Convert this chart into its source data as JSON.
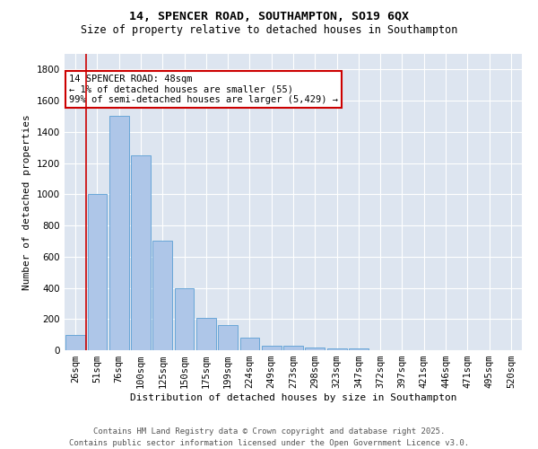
{
  "title1": "14, SPENCER ROAD, SOUTHAMPTON, SO19 6QX",
  "title2": "Size of property relative to detached houses in Southampton",
  "xlabel": "Distribution of detached houses by size in Southampton",
  "ylabel": "Number of detached properties",
  "categories": [
    "26sqm",
    "51sqm",
    "76sqm",
    "100sqm",
    "125sqm",
    "150sqm",
    "175sqm",
    "199sqm",
    "224sqm",
    "249sqm",
    "273sqm",
    "298sqm",
    "323sqm",
    "347sqm",
    "372sqm",
    "397sqm",
    "421sqm",
    "446sqm",
    "471sqm",
    "495sqm",
    "520sqm"
  ],
  "values": [
    100,
    1000,
    1500,
    1250,
    700,
    400,
    210,
    160,
    80,
    30,
    30,
    15,
    10,
    10,
    0,
    0,
    0,
    0,
    0,
    0,
    0
  ],
  "bar_color": "#aec6e8",
  "bar_edge_color": "#5a9fd4",
  "highlight_line_color": "#cc0000",
  "annotation_text": "14 SPENCER ROAD: 48sqm\n← 1% of detached houses are smaller (55)\n99% of semi-detached houses are larger (5,429) →",
  "annotation_box_color": "#cc0000",
  "ylim": [
    0,
    1900
  ],
  "yticks": [
    0,
    200,
    400,
    600,
    800,
    1000,
    1200,
    1400,
    1600,
    1800
  ],
  "background_color": "#dde5f0",
  "footer_text": "Contains HM Land Registry data © Crown copyright and database right 2025.\nContains public sector information licensed under the Open Government Licence v3.0.",
  "title1_fontsize": 9.5,
  "title2_fontsize": 8.5,
  "xlabel_fontsize": 8,
  "ylabel_fontsize": 8,
  "tick_fontsize": 7.5,
  "annotation_fontsize": 7.5,
  "footer_fontsize": 6.5
}
